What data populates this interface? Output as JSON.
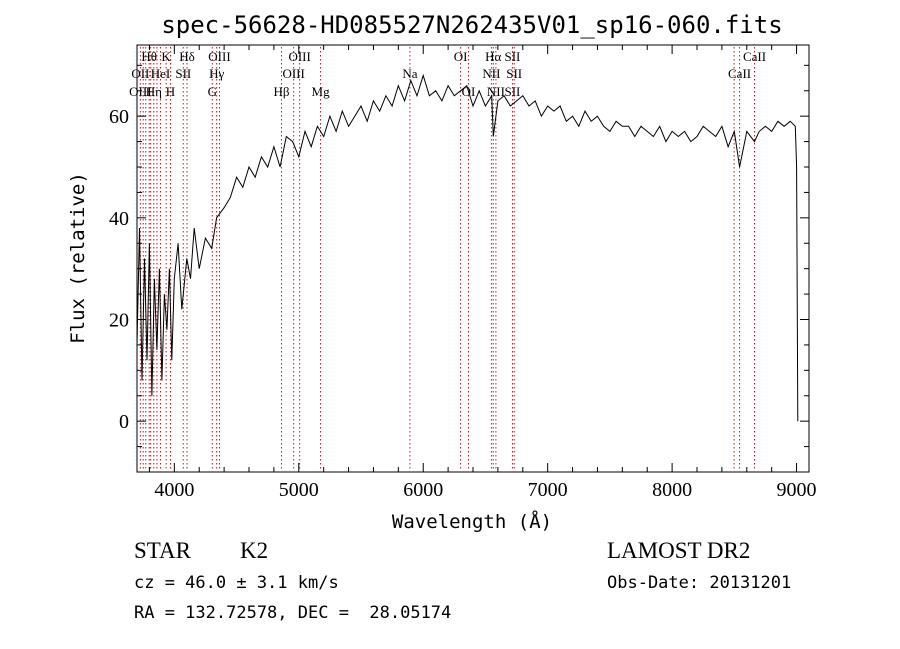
{
  "chart_data": {
    "type": "line",
    "title": "spec-56628-HD085527N262435V01_sp16-060.fits",
    "xlabel": "Wavelength (Å)",
    "ylabel": "Flux (relative)",
    "xlim": [
      3700,
      9100
    ],
    "ylim": [
      -10,
      74
    ],
    "x_ticks": [
      4000,
      5000,
      6000,
      7000,
      8000,
      9000
    ],
    "y_ticks": [
      0,
      20,
      40,
      60
    ],
    "grid": false,
    "series": [
      {
        "x": [
          3700,
          3720,
          3740,
          3760,
          3780,
          3800,
          3820,
          3840,
          3860,
          3880,
          3900,
          3920,
          3940,
          3960,
          3980,
          4000,
          4030,
          4060,
          4100,
          4130,
          4160,
          4200,
          4250,
          4300,
          4340,
          4400,
          4450,
          4500,
          4550,
          4600,
          4650,
          4700,
          4750,
          4800,
          4850,
          4900,
          4950,
          5000,
          5050,
          5100,
          5150,
          5200,
          5250,
          5300,
          5350,
          5400,
          5450,
          5500,
          5550,
          5600,
          5650,
          5700,
          5750,
          5800,
          5850,
          5900,
          5950,
          6000,
          6050,
          6100,
          6150,
          6200,
          6250,
          6300,
          6350,
          6400,
          6450,
          6500,
          6550,
          6563,
          6600,
          6650,
          6700,
          6750,
          6800,
          6850,
          6900,
          6950,
          7000,
          7050,
          7100,
          7150,
          7200,
          7250,
          7300,
          7350,
          7400,
          7450,
          7500,
          7550,
          7600,
          7650,
          7700,
          7750,
          7800,
          7850,
          7900,
          7950,
          8000,
          8050,
          8100,
          8150,
          8200,
          8250,
          8300,
          8350,
          8400,
          8450,
          8500,
          8542,
          8600,
          8662,
          8700,
          8750,
          8800,
          8850,
          8900,
          8950,
          8990,
          9000,
          9010
        ],
        "values": [
          15,
          38,
          8,
          32,
          12,
          35,
          5,
          28,
          14,
          30,
          8,
          25,
          18,
          30,
          12,
          28,
          35,
          22,
          32,
          28,
          38,
          30,
          36,
          34,
          40,
          42,
          44,
          48,
          46,
          50,
          48,
          52,
          50,
          54,
          50,
          56,
          55,
          52,
          57,
          54,
          58,
          56,
          60,
          57,
          61,
          58,
          60,
          62,
          59,
          63,
          61,
          64,
          62,
          66,
          63,
          67,
          64,
          68,
          64,
          65,
          63,
          66,
          64,
          65,
          66,
          62,
          65,
          62,
          64,
          56,
          63,
          64,
          62,
          63,
          64,
          62,
          63,
          60,
          62,
          61,
          62,
          59,
          60,
          58,
          61,
          59,
          60,
          58,
          57,
          59,
          58,
          58,
          56,
          58,
          57,
          56,
          58,
          55,
          57,
          56,
          57,
          55,
          56,
          58,
          57,
          56,
          58,
          54,
          57,
          50,
          57,
          55,
          57,
          58,
          57,
          59,
          58,
          59,
          58,
          50,
          0
        ]
      }
    ],
    "spectral_lines": [
      {
        "name": "Hθ",
        "x": 3798,
        "row": 1
      },
      {
        "name": "OII",
        "x": 3727,
        "row": 2
      },
      {
        "name": "OIII",
        "x": 3727,
        "row": 3
      },
      {
        "name": "HeI",
        "x": 3889,
        "row": 2
      },
      {
        "name": "Hη",
        "x": 3835,
        "row": 3
      },
      {
        "name": "K",
        "x": 3934,
        "row": 1
      },
      {
        "name": "SII",
        "x": 4072,
        "row": 2
      },
      {
        "name": "H",
        "x": 3969,
        "row": 3
      },
      {
        "name": "Hδ",
        "x": 4102,
        "row": 1
      },
      {
        "name": "OIII",
        "x": 4363,
        "row": 1
      },
      {
        "name": "Hγ",
        "x": 4340,
        "row": 2
      },
      {
        "name": "G",
        "x": 4305,
        "row": 3
      },
      {
        "name": "Hβ",
        "x": 4861,
        "row": 3
      },
      {
        "name": "OIII",
        "x": 5007,
        "row": 1
      },
      {
        "name": "OIII",
        "x": 4959,
        "row": 2
      },
      {
        "name": "Mg",
        "x": 5175,
        "row": 3
      },
      {
        "name": "Na",
        "x": 5893,
        "row": 2
      },
      {
        "name": "OI",
        "x": 6300,
        "row": 1
      },
      {
        "name": "OI",
        "x": 6364,
        "row": 3
      },
      {
        "name": "Hα",
        "x": 6563,
        "row": 1
      },
      {
        "name": "NII",
        "x": 6548,
        "row": 2
      },
      {
        "name": "NII",
        "x": 6584,
        "row": 3
      },
      {
        "name": "SII",
        "x": 6717,
        "row": 1
      },
      {
        "name": "SII",
        "x": 6731,
        "row": 2
      },
      {
        "name": "SII",
        "x": 6717,
        "row": 3
      },
      {
        "name": "CaII",
        "x": 8662,
        "row": 1
      },
      {
        "name": "CaII",
        "x": 8542,
        "row": 2
      }
    ],
    "extra_line_markers": [
      3750,
      3770,
      3810,
      3860,
      3970,
      4340,
      4861,
      5007,
      5175,
      5893,
      6300,
      6364,
      6548,
      6563,
      6584,
      6717,
      6731,
      8498,
      8542,
      8662
    ]
  },
  "info": {
    "class_label": "STAR",
    "subclass_label": "K2",
    "survey": "LAMOST DR2",
    "cz": "cz = 46.0 ± 3.1 km/s",
    "obs_date": "Obs-Date: 20131201",
    "coords": "RA = 132.72578, DEC =  28.05174"
  }
}
